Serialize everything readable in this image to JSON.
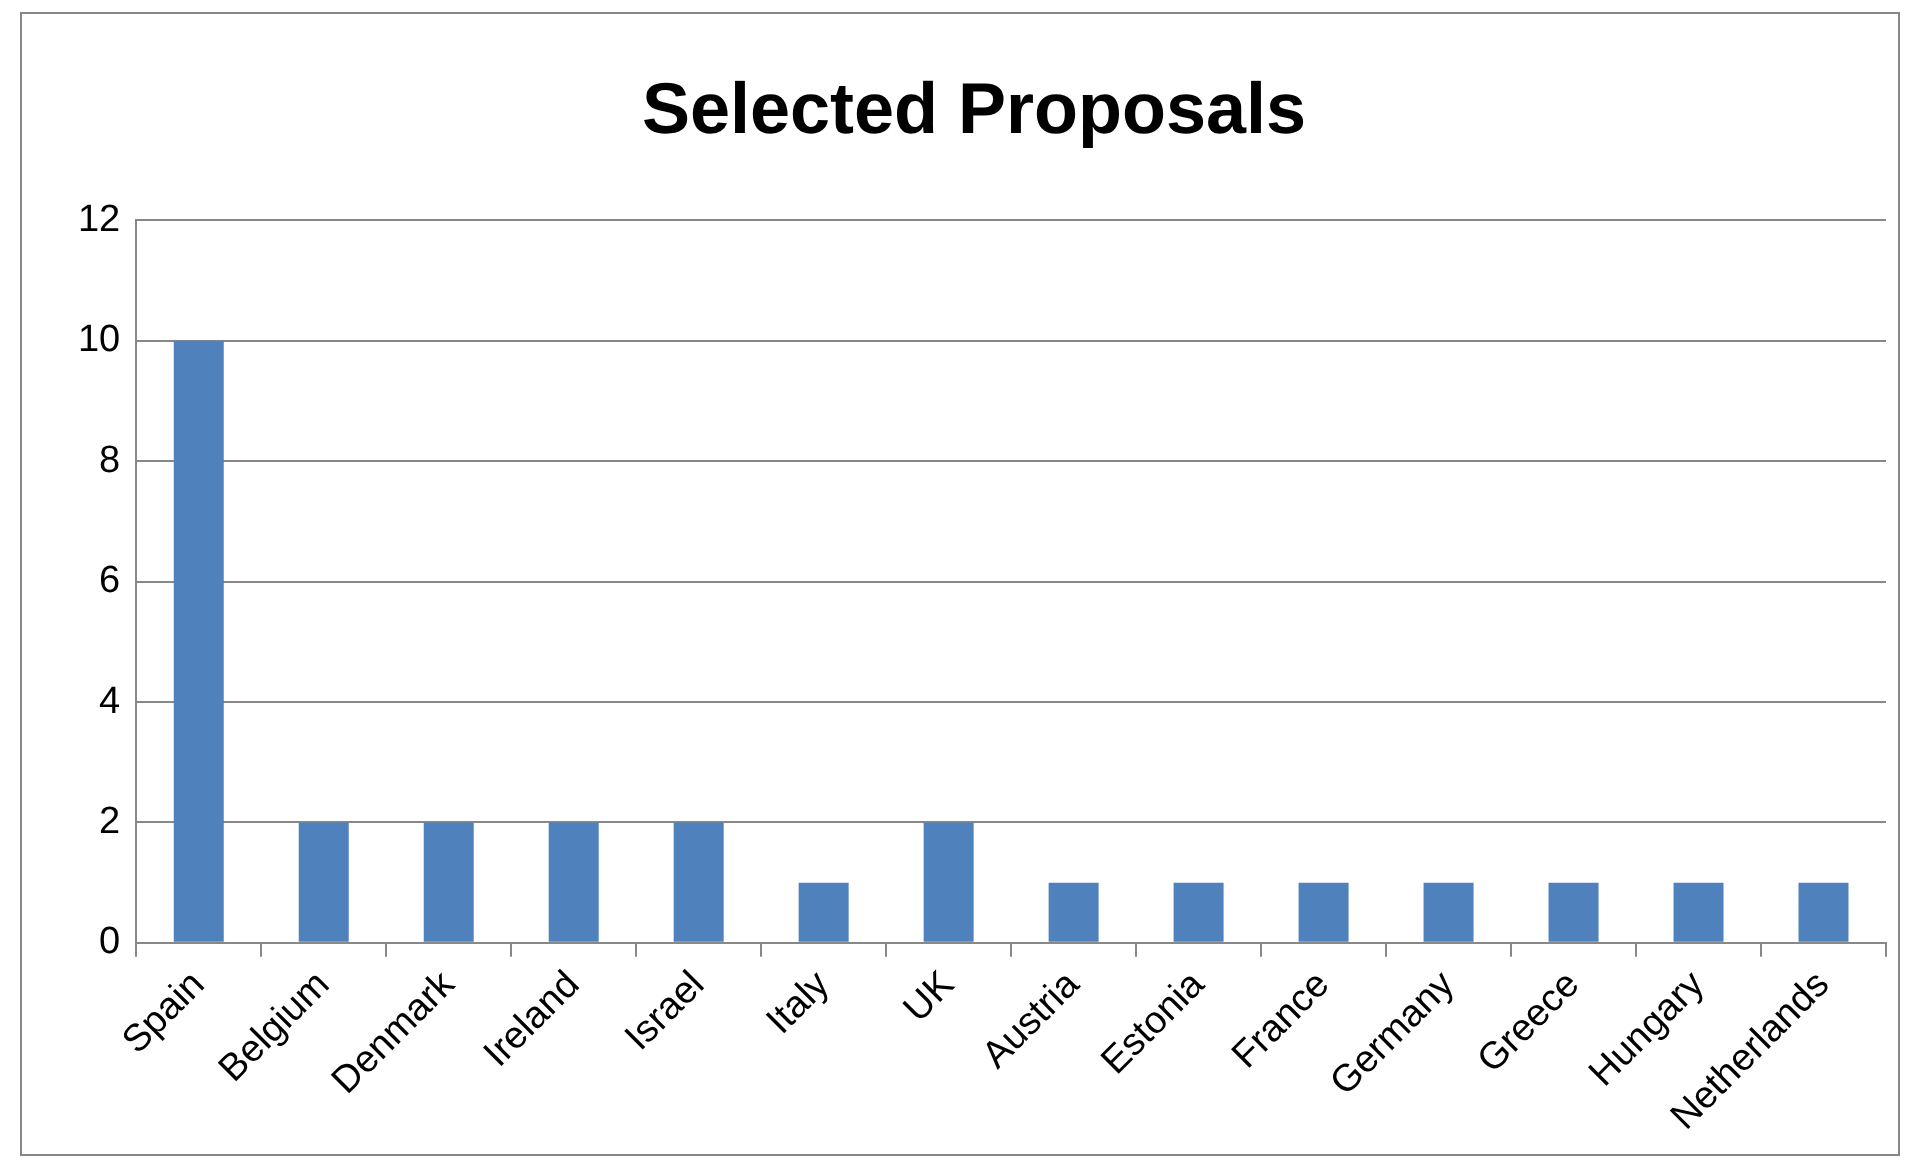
{
  "chart_data": {
    "type": "bar",
    "title": "Selected Proposals",
    "categories": [
      "Spain",
      "Belgium",
      "Denmark",
      "Ireland",
      "Israel",
      "Italy",
      "UK",
      "Austria",
      "Estonia",
      "France",
      "Germany",
      "Greece",
      "Hungary",
      "Netherlands"
    ],
    "values": [
      10,
      2,
      2,
      2,
      2,
      1,
      2,
      1,
      1,
      1,
      1,
      1,
      1,
      1
    ],
    "color": "#4f81bd",
    "ylim": [
      0,
      12
    ],
    "yticks": [
      0,
      2,
      4,
      6,
      8,
      10,
      12
    ],
    "grid": "y",
    "legend": false
  }
}
